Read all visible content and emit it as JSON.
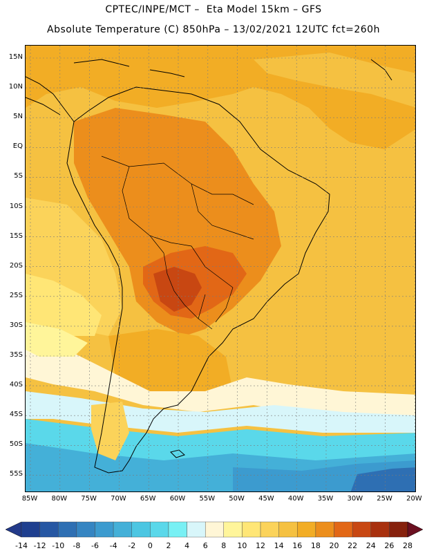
{
  "title": {
    "line1": "CPTEC/INPE/MCT –  Eta Model 15km – GFS",
    "line2": "Absolute Temperature (C) 850hPa – 13/02/2021 12UTC fct=260h"
  },
  "lat_labels": [
    "15N",
    "10N",
    "5N",
    "EQ",
    "5S",
    "10S",
    "15S",
    "20S",
    "25S",
    "30S",
    "35S",
    "40S",
    "45S",
    "50S",
    "55S"
  ],
  "lon_labels": [
    "85W",
    "80W",
    "75W",
    "70W",
    "65W",
    "60W",
    "55W",
    "50W",
    "45W",
    "40W",
    "35W",
    "30W",
    "25W",
    "20W"
  ],
  "colorbar": {
    "labels": [
      "-14",
      "-12",
      "-10",
      "-8",
      "-6",
      "-4",
      "-2",
      "0",
      "2",
      "4",
      "6",
      "8",
      "10",
      "12",
      "14",
      "16",
      "18",
      "20",
      "22",
      "24",
      "26",
      "28"
    ],
    "colors": [
      "#1f3f8f",
      "#2657a3",
      "#2e6fb3",
      "#3585c2",
      "#3c9bcf",
      "#44b0d8",
      "#4cc6e2",
      "#5ad8ea",
      "#78f0f4",
      "#d8f6fa",
      "#fff6d6",
      "#fff59a",
      "#ffe676",
      "#fbd35a",
      "#f5c141",
      "#f2ad25",
      "#ec8e1c",
      "#e26716",
      "#c84712",
      "#a8300e",
      "#86210c"
    ],
    "under_color": "#233a8a",
    "over_color": "#6b0f20"
  },
  "field_colors": {
    "deep_blue": "#2e6fb3",
    "blue": "#3c9bcf",
    "cyan": "#44b0d8",
    "light_cyan": "#5ad8ea",
    "pale": "#d8f6fa",
    "cream": "#fff6d6",
    "yellow": "#fff59a",
    "light_yellow": "#ffe676",
    "yellow_orange": "#fbd35a",
    "light_orange": "#f5c141",
    "orange": "#f2ad25",
    "dark_orange": "#ec8e1c",
    "red_orange": "#e26716",
    "red": "#c84712"
  }
}
